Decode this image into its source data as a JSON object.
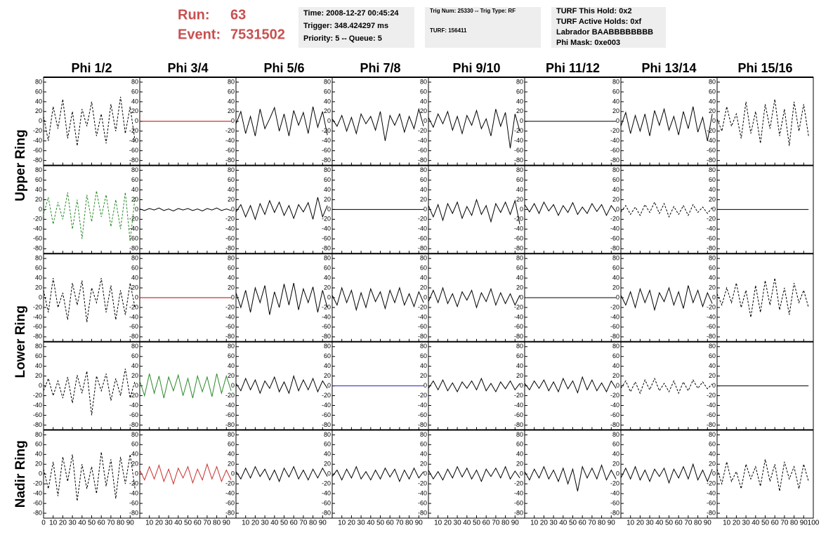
{
  "header": {
    "run_label": "Run:",
    "run": "63",
    "event_label": "Event:",
    "event": "7531502",
    "box1": [
      "Time: 2008-12-27 00:45:24",
      "Trigger: 348.424297 ms",
      "Priority: 5 -- Queue: 5"
    ],
    "box2": [
      "Trig Num: 25330 -- Trig Type: RF",
      "TURF: 156411"
    ],
    "box3": [
      "TURF This Hold: 0x2",
      "TURF Active Holds: 0xf",
      "Labrador BAABBBBBBBB",
      "Phi Mask: 0xe003"
    ]
  },
  "chart_data": {
    "type": "line",
    "columns": [
      "Phi 1/2",
      "Phi 3/4",
      "Phi 5/6",
      "Phi 7/8",
      "Phi 9/10",
      "Phi 11/12",
      "Phi 13/14",
      "Phi 15/16"
    ],
    "rows": [
      "Upper Ring",
      "Lower Ring",
      "Nadir Ring"
    ],
    "x": [
      0,
      5,
      10,
      15,
      20,
      25,
      30,
      35,
      40,
      45,
      50,
      55,
      60,
      65,
      70,
      75,
      80,
      85,
      90,
      95
    ],
    "xlim": [
      0,
      100
    ],
    "xticks": [
      0,
      10,
      20,
      30,
      40,
      50,
      60,
      70,
      80,
      90,
      100
    ],
    "ylim": [
      -90,
      90
    ],
    "yticks": [
      -80,
      -60,
      -40,
      -20,
      0,
      20,
      40,
      60,
      80
    ],
    "panels": [
      [
        {
          "color": "#000000",
          "dashed": true,
          "values": [
            10,
            -40,
            30,
            -15,
            45,
            -35,
            20,
            -50,
            25,
            -10,
            40,
            -30,
            15,
            -45,
            35,
            -20,
            50,
            -25,
            30,
            -40
          ]
        },
        {
          "color": "#c00000",
          "dashed": false,
          "values": [
            0,
            0,
            0,
            0,
            0,
            0,
            0,
            0,
            0,
            0,
            0,
            0,
            0,
            0,
            0,
            0,
            0,
            0,
            0,
            0
          ]
        },
        {
          "color": "#000000",
          "dashed": false,
          "values": [
            -5,
            20,
            -25,
            10,
            -30,
            25,
            -15,
            5,
            28,
            -20,
            15,
            -30,
            22,
            -8,
            18,
            -25,
            30,
            -12,
            20,
            -28
          ]
        },
        {
          "color": "#000000",
          "dashed": false,
          "values": [
            5,
            -10,
            12,
            -20,
            8,
            -25,
            15,
            -5,
            10,
            -18,
            20,
            -40,
            12,
            -8,
            15,
            -22,
            10,
            -15,
            25,
            -10
          ]
        },
        {
          "color": "#000000",
          "dashed": false,
          "values": [
            8,
            -12,
            15,
            -5,
            20,
            -18,
            10,
            -25,
            12,
            -8,
            22,
            -15,
            5,
            -30,
            25,
            -10,
            18,
            -55,
            15,
            -20
          ]
        },
        {
          "color": "#000000",
          "dashed": false,
          "values": [
            0,
            0,
            0,
            0,
            0,
            0,
            0,
            0,
            0,
            0,
            0,
            0,
            0,
            0,
            0,
            0,
            0,
            0,
            0,
            0
          ]
        },
        {
          "color": "#000000",
          "dashed": false,
          "values": [
            -10,
            18,
            -25,
            12,
            -20,
            15,
            -30,
            22,
            -8,
            25,
            -18,
            10,
            -28,
            20,
            -15,
            30,
            -22,
            8,
            -40,
            15
          ]
        },
        {
          "color": "#000000",
          "dashed": true,
          "values": [
            5,
            -20,
            30,
            -10,
            15,
            -35,
            40,
            -25,
            20,
            -45,
            35,
            -15,
            45,
            -30,
            25,
            -50,
            40,
            -20,
            35,
            -30
          ]
        }
      ],
      [
        {
          "color": "#2a8a2a",
          "dashed": true,
          "values": [
            -10,
            25,
            -30,
            15,
            -20,
            35,
            -40,
            20,
            -60,
            30,
            -25,
            38,
            -15,
            30,
            -35,
            20,
            -40,
            35,
            -65,
            25
          ]
        },
        {
          "color": "#000000",
          "dashed": false,
          "values": [
            1,
            -2,
            2,
            -1,
            3,
            -2,
            1,
            -3,
            2,
            -1,
            2,
            -2,
            1,
            -3,
            2,
            -1,
            3,
            -2,
            1,
            -2
          ]
        },
        {
          "color": "#000000",
          "dashed": false,
          "values": [
            -5,
            10,
            -15,
            8,
            -20,
            12,
            -10,
            18,
            -6,
            15,
            -12,
            8,
            -18,
            10,
            -5,
            14,
            -20,
            25,
            -15,
            8
          ]
        },
        {
          "color": "#000000",
          "dashed": false,
          "values": [
            0,
            0,
            0,
            0,
            0,
            0,
            0,
            0,
            0,
            0,
            0,
            0,
            0,
            0,
            0,
            0,
            0,
            0,
            0,
            0
          ]
        },
        {
          "color": "#000000",
          "dashed": false,
          "values": [
            8,
            -15,
            10,
            -22,
            12,
            -8,
            15,
            -18,
            6,
            -12,
            20,
            -10,
            8,
            -25,
            12,
            -6,
            15,
            -10,
            18,
            -30
          ]
        },
        {
          "color": "#000000",
          "dashed": false,
          "values": [
            10,
            -5,
            12,
            -8,
            15,
            -3,
            10,
            -12,
            8,
            -6,
            14,
            -10,
            5,
            -8,
            12,
            -4,
            10,
            -12,
            8,
            -5
          ]
        },
        {
          "color": "#000000",
          "dashed": true,
          "values": [
            -5,
            8,
            -10,
            5,
            -12,
            10,
            -6,
            15,
            -8,
            12,
            -15,
            6,
            -10,
            8,
            -12,
            10,
            -6,
            5,
            -8,
            4
          ]
        },
        {
          "color": "#000000",
          "dashed": false,
          "values": [
            0,
            0,
            0,
            0,
            0,
            0,
            0,
            0,
            0,
            0,
            0,
            0,
            0,
            0,
            0,
            0,
            0,
            0,
            0,
            0
          ]
        }
      ],
      [
        {
          "color": "#000000",
          "dashed": true,
          "values": [
            15,
            -30,
            40,
            -20,
            10,
            -45,
            30,
            -15,
            35,
            -50,
            20,
            -10,
            40,
            -30,
            25,
            -45,
            15,
            -35,
            30,
            -20
          ]
        },
        {
          "color": "#c00000",
          "dashed": false,
          "values": [
            0,
            0,
            0,
            0,
            0,
            0,
            0,
            0,
            0,
            0,
            0,
            0,
            0,
            0,
            0,
            0,
            0,
            0,
            0,
            0
          ]
        },
        {
          "color": "#000000",
          "dashed": false,
          "values": [
            10,
            -20,
            15,
            -30,
            20,
            -10,
            25,
            -35,
            12,
            -20,
            28,
            -15,
            30,
            -25,
            18,
            -10,
            22,
            -30,
            15,
            -20
          ]
        },
        {
          "color": "#000000",
          "dashed": false,
          "values": [
            5,
            -15,
            20,
            -10,
            15,
            -25,
            10,
            -20,
            18,
            -8,
            12,
            -22,
            15,
            -10,
            20,
            -15,
            8,
            -18,
            12,
            -10
          ]
        },
        {
          "color": "#000000",
          "dashed": false,
          "values": [
            -8,
            15,
            -10,
            20,
            -12,
            8,
            -18,
            12,
            -5,
            15,
            -20,
            10,
            -8,
            18,
            -15,
            10,
            -12,
            8,
            -15,
            5
          ]
        },
        {
          "color": "#000000",
          "dashed": false,
          "values": [
            0,
            0,
            0,
            0,
            0,
            0,
            0,
            0,
            0,
            0,
            0,
            0,
            0,
            0,
            0,
            0,
            0,
            0,
            0,
            0
          ]
        },
        {
          "color": "#000000",
          "dashed": false,
          "values": [
            5,
            -15,
            12,
            -20,
            18,
            -10,
            15,
            -25,
            10,
            -8,
            20,
            -15,
            12,
            -22,
            25,
            -10,
            15,
            -18,
            10,
            -12
          ]
        },
        {
          "color": "#000000",
          "dashed": true,
          "values": [
            8,
            -15,
            20,
            -10,
            30,
            -20,
            15,
            -40,
            25,
            -30,
            35,
            -15,
            40,
            -25,
            20,
            -35,
            30,
            -10,
            15,
            -20
          ]
        }
      ],
      [
        {
          "color": "#000000",
          "dashed": true,
          "values": [
            -10,
            15,
            -20,
            10,
            -25,
            18,
            -35,
            22,
            -15,
            30,
            -60,
            20,
            -10,
            25,
            -30,
            15,
            -20,
            35,
            -25,
            10
          ]
        },
        {
          "color": "#2a8a2a",
          "dashed": false,
          "values": [
            10,
            -20,
            25,
            -15,
            20,
            -25,
            18,
            -10,
            22,
            -20,
            15,
            -25,
            20,
            -12,
            18,
            -22,
            25,
            -15,
            20,
            -10
          ]
        },
        {
          "color": "#000000",
          "dashed": false,
          "values": [
            5,
            -10,
            15,
            -8,
            12,
            -15,
            10,
            -5,
            18,
            -12,
            8,
            -15,
            20,
            -10,
            12,
            -8,
            15,
            -12,
            10,
            -5
          ]
        },
        {
          "color": "#2020c0",
          "dashed": false,
          "values": [
            0,
            0,
            0,
            0,
            0,
            0,
            0,
            0,
            0,
            0,
            0,
            0,
            0,
            0,
            0,
            0,
            0,
            0,
            0,
            0
          ]
        },
        {
          "color": "#000000",
          "dashed": false,
          "values": [
            -5,
            10,
            -8,
            12,
            -10,
            6,
            -12,
            8,
            -5,
            10,
            -8,
            15,
            -10,
            5,
            -12,
            8,
            -6,
            10,
            -8,
            5
          ]
        },
        {
          "color": "#000000",
          "dashed": false,
          "values": [
            5,
            -8,
            10,
            -5,
            12,
            -10,
            8,
            -12,
            15,
            -6,
            10,
            -14,
            18,
            -8,
            12,
            -10,
            6,
            -12,
            10,
            -5
          ]
        },
        {
          "color": "#000000",
          "dashed": true,
          "values": [
            -5,
            10,
            -12,
            8,
            -15,
            12,
            -8,
            15,
            -10,
            5,
            -12,
            10,
            -15,
            8,
            -10,
            12,
            -5,
            8,
            -6,
            4
          ]
        },
        {
          "color": "#000000",
          "dashed": false,
          "values": [
            0,
            0,
            0,
            0,
            0,
            0,
            0,
            0,
            0,
            0,
            0,
            0,
            0,
            0,
            0,
            0,
            0,
            0,
            0,
            0
          ]
        }
      ],
      [
        {
          "color": "#000000",
          "dashed": true,
          "values": [
            10,
            -30,
            25,
            -45,
            35,
            -15,
            40,
            -55,
            20,
            -30,
            15,
            -40,
            45,
            -25,
            30,
            -50,
            35,
            -20,
            40,
            -30
          ]
        },
        {
          "color": "#c83030",
          "dashed": false,
          "values": [
            8,
            -12,
            15,
            -10,
            18,
            -15,
            10,
            -20,
            12,
            -8,
            15,
            -18,
            10,
            -12,
            20,
            -10,
            15,
            -15,
            8,
            -12
          ]
        },
        {
          "color": "#000000",
          "dashed": false,
          "values": [
            5,
            -10,
            12,
            -8,
            15,
            -5,
            10,
            -12,
            8,
            -15,
            12,
            -6,
            15,
            -10,
            8,
            -12,
            10,
            -8,
            12,
            -5
          ]
        },
        {
          "color": "#000000",
          "dashed": false,
          "values": [
            -5,
            8,
            -12,
            10,
            -8,
            15,
            -10,
            5,
            -12,
            8,
            -10,
            12,
            -6,
            10,
            -15,
            8,
            -10,
            12,
            -8,
            5
          ]
        },
        {
          "color": "#000000",
          "dashed": false,
          "values": [
            8,
            -10,
            5,
            -12,
            10,
            -8,
            15,
            -6,
            12,
            -10,
            8,
            -15,
            10,
            -5,
            12,
            -8,
            15,
            -10,
            6,
            -8
          ]
        },
        {
          "color": "#000000",
          "dashed": false,
          "values": [
            5,
            -12,
            10,
            -8,
            15,
            -10,
            8,
            -15,
            12,
            -20,
            10,
            -35,
            15,
            -8,
            12,
            -10,
            18,
            -12,
            8,
            -10
          ]
        },
        {
          "color": "#000000",
          "dashed": false,
          "values": [
            -8,
            12,
            -10,
            15,
            -12,
            8,
            -15,
            10,
            -5,
            12,
            -18,
            10,
            -8,
            15,
            -10,
            20,
            -12,
            8,
            -15,
            10
          ]
        },
        {
          "color": "#000000",
          "dashed": true,
          "values": [
            10,
            -20,
            25,
            -15,
            5,
            -30,
            20,
            -10,
            15,
            -25,
            30,
            -15,
            20,
            -35,
            25,
            -10,
            15,
            -30,
            20,
            -15
          ]
        }
      ]
    ]
  }
}
